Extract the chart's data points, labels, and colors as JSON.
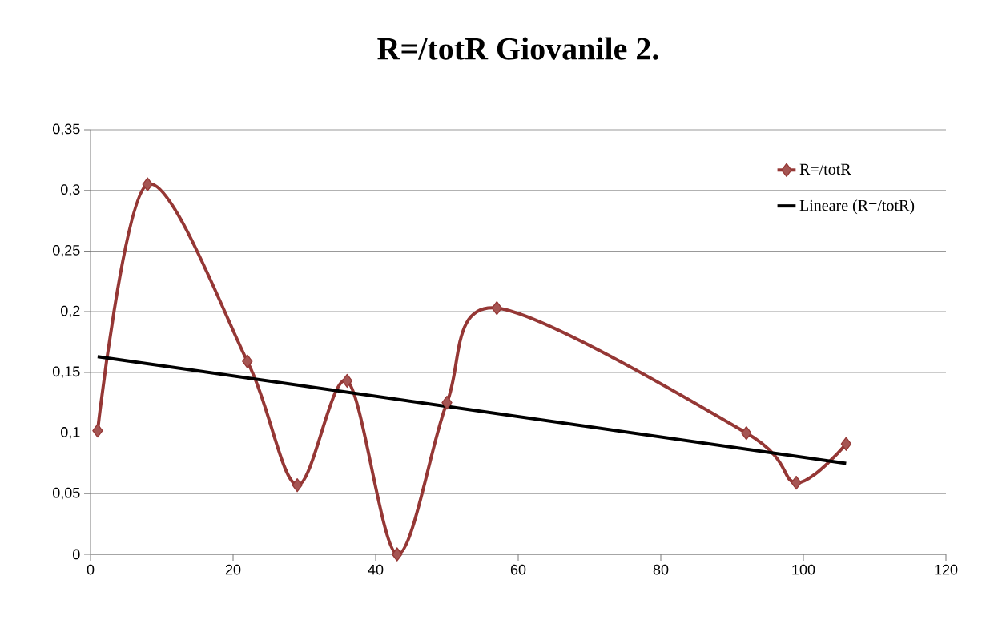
{
  "chart_data": {
    "type": "line",
    "title": "R=/totR Giovanile 2.",
    "series": [
      {
        "name": "R=/totR",
        "color": "#953735",
        "marker": "diamond",
        "x": [
          1,
          8,
          22,
          29,
          36,
          43,
          50,
          57,
          92,
          99,
          106
        ],
        "values": [
          0.102,
          0.305,
          0.159,
          0.057,
          0.143,
          0.0,
          0.125,
          0.203,
          0.1,
          0.059,
          0.091
        ]
      },
      {
        "name": "Lineare (R=/totR)",
        "color": "#000000",
        "marker": "none",
        "x": [
          1,
          106
        ],
        "values": [
          0.163,
          0.075
        ]
      }
    ],
    "xlim": [
      0,
      120
    ],
    "xticks": [
      0,
      20,
      40,
      60,
      80,
      100,
      120
    ],
    "ylim": [
      0,
      0.35
    ],
    "yticks": [
      {
        "value": 0,
        "label": "0"
      },
      {
        "value": 0.05,
        "label": "0,05"
      },
      {
        "value": 0.1,
        "label": "0,1"
      },
      {
        "value": 0.15,
        "label": "0,15"
      },
      {
        "value": 0.2,
        "label": "0,2"
      },
      {
        "value": 0.25,
        "label": "0,25"
      },
      {
        "value": 0.3,
        "label": "0,3"
      },
      {
        "value": 0.35,
        "label": "0,35"
      }
    ],
    "grid": "y",
    "legend": "top right",
    "line_style": "solid"
  }
}
